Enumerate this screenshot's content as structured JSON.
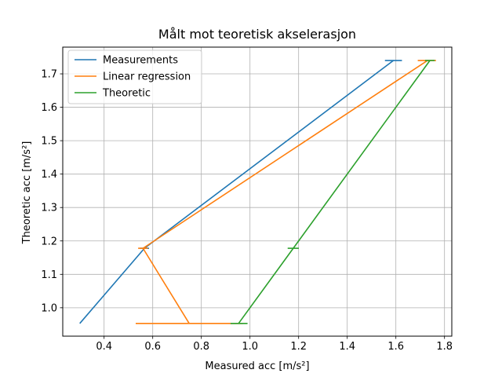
{
  "chart_data": {
    "type": "line",
    "title": "Målt mot teoretisk akselerasjon",
    "xlabel": "Measured acc [m/s²]",
    "ylabel": "Theoretic acc [m/s²]",
    "xlim": [
      0.23,
      1.83
    ],
    "ylim": [
      0.915,
      1.78
    ],
    "xticks": [
      0.4,
      0.6,
      0.8,
      1.0,
      1.2,
      1.4,
      1.6,
      1.8
    ],
    "xtick_labels": [
      "0.4",
      "0.6",
      "0.8",
      "1.0",
      "1.2",
      "1.4",
      "1.6",
      "1.8"
    ],
    "yticks": [
      1.0,
      1.1,
      1.2,
      1.3,
      1.4,
      1.5,
      1.6,
      1.7
    ],
    "ytick_labels": [
      "1.0",
      "1.1",
      "1.2",
      "1.3",
      "1.4",
      "1.5",
      "1.6",
      "1.7"
    ],
    "grid": true,
    "legend_position": "top-left",
    "series": [
      {
        "name": "Measurements",
        "color": "#1f77b4",
        "points": [
          [
            0.3,
            0.953
          ],
          [
            0.566,
            1.178
          ],
          [
            1.59,
            1.74
          ]
        ],
        "errorbars": [
          {
            "y": 0.953,
            "xmin": 0.3,
            "xmax": 0.3
          },
          {
            "y": 1.178,
            "xmin": 0.547,
            "xmax": 0.585
          },
          {
            "y": 1.74,
            "xmin": 1.555,
            "xmax": 1.625
          }
        ]
      },
      {
        "name": "Linear regression",
        "color": "#ff7f0e",
        "points": [
          [
            0.75,
            0.953
          ],
          [
            0.56,
            1.178
          ],
          [
            1.73,
            1.74
          ]
        ],
        "errorbars": [
          {
            "y": 0.953,
            "xmin": 0.53,
            "xmax": 0.97
          },
          {
            "y": 1.178,
            "xmin": 0.54,
            "xmax": 0.58
          },
          {
            "y": 1.74,
            "xmin": 1.69,
            "xmax": 1.765
          }
        ]
      },
      {
        "name": "Theoretic",
        "color": "#2ca02c",
        "points": [
          [
            0.953,
            0.953
          ],
          [
            1.178,
            1.178
          ],
          [
            1.74,
            1.74
          ]
        ],
        "errorbars": [
          {
            "y": 0.953,
            "xmin": 0.92,
            "xmax": 0.99
          },
          {
            "y": 1.178,
            "xmin": 1.155,
            "xmax": 1.201
          },
          {
            "y": 1.74,
            "xmin": 1.72,
            "xmax": 1.76
          }
        ]
      }
    ]
  }
}
